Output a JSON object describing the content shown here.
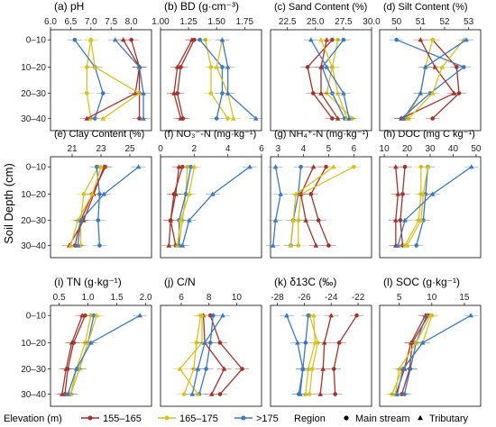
{
  "ylabel": "Soil Depth (cm)",
  "depths": [
    "0–10",
    "10–20",
    "20–30",
    "30–40"
  ],
  "colors": {
    "155–165": "#a5322a",
    "165–175": "#d9c21f",
    ">175": "#3c78c2"
  },
  "legend": {
    "elevation_title": "Elevation (m)",
    "elevation_items": [
      "155–165",
      "165–175",
      ">175"
    ],
    "region_title": "Region",
    "region_items": [
      "Main stream",
      "Tributary"
    ]
  },
  "chart_data": [
    {
      "title": "(a) pH",
      "type": "line",
      "xlim": [
        6.0,
        8.5
      ],
      "xticks": [
        6.0,
        6.5,
        7.0,
        7.5,
        8.0
      ],
      "series": [
        {
          "name": "155–165",
          "x": [
            8.0,
            8.2,
            8.2,
            8.2
          ]
        },
        {
          "name": "165–175",
          "x": [
            7.0,
            6.9,
            6.9,
            7.0
          ]
        },
        {
          "name": ">175",
          "x": [
            6.6,
            7.1,
            7.3,
            7.1
          ]
        },
        {
          "name": "155–165",
          "x": [
            7.8,
            8.2,
            8.1,
            6.9
          ]
        },
        {
          "name": "165–175",
          "x": [
            7.0,
            7.1,
            8.2,
            7.3
          ]
        },
        {
          "name": ">175",
          "x": [
            7.6,
            8.2,
            8.3,
            8.3
          ]
        }
      ]
    },
    {
      "title": "(b) BD (g·cm⁻³)",
      "type": "line",
      "xlim": [
        1.0,
        1.9
      ],
      "xticks": [
        1.0,
        1.25,
        1.5,
        1.75
      ],
      "series": [
        {
          "name": "155–165",
          "x": [
            1.3,
            1.18,
            1.15,
            1.2
          ]
        },
        {
          "name": "165–175",
          "x": [
            1.4,
            1.45,
            1.45,
            1.6
          ]
        },
        {
          "name": ">175",
          "x": [
            1.35,
            1.55,
            1.55,
            1.5
          ]
        },
        {
          "name": "155–165",
          "x": [
            1.28,
            1.15,
            1.12,
            1.18
          ]
        },
        {
          "name": "165–175",
          "x": [
            1.55,
            1.5,
            1.6,
            1.65
          ]
        },
        {
          "name": ">175",
          "x": [
            1.55,
            1.6,
            1.6,
            1.85
          ]
        }
      ]
    },
    {
      "title": "(c) Sand Content (%)",
      "type": "line",
      "xlim": [
        21,
        30
      ],
      "xticks": [
        22.5,
        25.0,
        27.5,
        30.0
      ],
      "series": [
        {
          "name": "155–165",
          "x": [
            26.5,
            24.3,
            24.8,
            26.5
          ]
        },
        {
          "name": "165–175",
          "x": [
            27,
            26.5,
            26,
            28.3
          ]
        },
        {
          "name": ">175",
          "x": [
            27.5,
            25.6,
            26.5,
            27.6
          ]
        },
        {
          "name": "155–165",
          "x": [
            26,
            25.5,
            25.5,
            27
          ]
        },
        {
          "name": "165–175",
          "x": [
            25.5,
            26.5,
            27,
            27.8
          ]
        },
        {
          "name": ">175",
          "x": [
            24.6,
            26,
            27.5,
            28
          ]
        }
      ]
    },
    {
      "title": "(d) Silt Content (%)",
      "type": "line",
      "xlim": [
        49.3,
        53.5
      ],
      "xticks": [
        50,
        51,
        52,
        53
      ],
      "series": [
        {
          "name": "155–165",
          "x": [
            51.5,
            52.5,
            52.6,
            51.5
          ]
        },
        {
          "name": "165–175",
          "x": [
            51.5,
            51.2,
            51,
            50.4
          ]
        },
        {
          "name": ">175",
          "x": [
            50,
            52.8,
            51.4,
            50.2
          ]
        },
        {
          "name": "155–165",
          "x": [
            51,
            51.6,
            52.4,
            50.2
          ]
        },
        {
          "name": "165–175",
          "x": [
            52.8,
            51.9,
            51.5,
            50.5
          ]
        },
        {
          "name": ">175",
          "x": [
            52.9,
            51.2,
            51,
            50.3
          ]
        }
      ]
    },
    {
      "title": "(e) Clay Content (%)",
      "type": "line",
      "xlim": [
        19.5,
        26.5
      ],
      "xticks": [
        21,
        23,
        25
      ],
      "series": [
        {
          "name": "155–165",
          "x": [
            23.3,
            22.4,
            21.6,
            21.2
          ]
        },
        {
          "name": "165–175",
          "x": [
            22.8,
            21.8,
            21.6,
            21.6
          ]
        },
        {
          "name": ">175",
          "x": [
            22.7,
            22.9,
            22.8,
            22.9
          ]
        },
        {
          "name": "155–165",
          "x": [
            23.2,
            22.5,
            21.8,
            20.8
          ]
        },
        {
          "name": "165–175",
          "x": [
            23,
            22.4,
            21.4,
            20.9
          ]
        },
        {
          "name": ">175",
          "x": [
            25.6,
            23.2,
            21.6,
            21.4
          ]
        }
      ]
    },
    {
      "title": "(f) NO₃⁻-N (mg·kg⁻¹)",
      "type": "line",
      "xlim": [
        0,
        6
      ],
      "xticks": [
        0,
        2,
        4,
        6
      ],
      "series": [
        {
          "name": "155–165",
          "x": [
            1.3,
            0.8,
            0.6,
            0.9
          ]
        },
        {
          "name": "165–175",
          "x": [
            1.6,
            1.5,
            1.3,
            1.1
          ]
        },
        {
          "name": ">175",
          "x": [
            1.8,
            1.5,
            1.1,
            1.1
          ]
        },
        {
          "name": "155–165",
          "x": [
            1.1,
            0.9,
            0.6,
            0.5
          ]
        },
        {
          "name": "165–175",
          "x": [
            2.0,
            1.7,
            1.2,
            1.0
          ]
        },
        {
          "name": ">175",
          "x": [
            5.3,
            3.1,
            1.7,
            1.3
          ]
        }
      ]
    },
    {
      "title": "(g) NH₄⁺-N (mg·kg⁻¹)",
      "type": "line",
      "xlim": [
        2.7,
        6.7
      ],
      "xticks": [
        3,
        4,
        5,
        6
      ],
      "series": [
        {
          "name": "155–165",
          "x": [
            4.9,
            4.3,
            4.6,
            5.0
          ]
        },
        {
          "name": "165–175",
          "x": [
            6.0,
            3.9,
            3.8,
            3.8
          ]
        },
        {
          "name": ">175",
          "x": [
            3.9,
            3.8,
            3.6,
            3.5
          ]
        },
        {
          "name": "155–165",
          "x": [
            4.4,
            3.9,
            4.1,
            4.5
          ]
        },
        {
          "name": "165–175",
          "x": [
            5.2,
            3.7,
            3.6,
            3.5
          ]
        },
        {
          "name": ">175",
          "x": [
            2.9,
            3.1,
            2.9,
            2.8
          ]
        }
      ]
    },
    {
      "title": "(h) DOC (mg C kg⁻¹)",
      "type": "line",
      "xlim": [
        8,
        52
      ],
      "xticks": [
        10,
        20,
        30,
        40,
        50
      ],
      "series": [
        {
          "name": "155–165",
          "x": [
            19,
            18,
            17,
            18
          ]
        },
        {
          "name": "165–175",
          "x": [
            26,
            26,
            25,
            19
          ]
        },
        {
          "name": ">175",
          "x": [
            29,
            28,
            27,
            24
          ]
        },
        {
          "name": "155–165",
          "x": [
            15,
            16,
            15,
            15
          ]
        },
        {
          "name": "165–175",
          "x": [
            29,
            27,
            26,
            20
          ]
        },
        {
          "name": ">175",
          "x": [
            48,
            31,
            19,
            16
          ]
        }
      ]
    },
    {
      "title": "(i) TN (g·kg⁻¹)",
      "type": "line",
      "xlim": [
        0.35,
        2.1
      ],
      "xticks": [
        0.5,
        1.0,
        1.5,
        2.0
      ],
      "series": [
        {
          "name": "155–165",
          "x": [
            0.95,
            0.75,
            0.65,
            0.6
          ]
        },
        {
          "name": "165–175",
          "x": [
            1.05,
            0.95,
            0.8,
            0.7
          ]
        },
        {
          "name": ">175",
          "x": [
            1.1,
            1.0,
            0.85,
            0.7
          ]
        },
        {
          "name": "155–165",
          "x": [
            0.9,
            0.72,
            0.62,
            0.55
          ]
        },
        {
          "name": "165–175",
          "x": [
            1.15,
            1.0,
            0.85,
            0.7
          ]
        },
        {
          "name": ">175",
          "x": [
            1.9,
            1.05,
            0.8,
            0.65
          ]
        }
      ]
    },
    {
      "title": "(j) C/N",
      "type": "line",
      "xlim": [
        4.5,
        11.8
      ],
      "xticks": [
        6,
        8,
        10
      ],
      "series": [
        {
          "name": "155–165",
          "x": [
            8.1,
            8.8,
            10.4,
            8.8
          ]
        },
        {
          "name": "165–175",
          "x": [
            7.4,
            7.1,
            6.9,
            6.2
          ]
        },
        {
          "name": ">175",
          "x": [
            8.3,
            8.1,
            7.8,
            7.3
          ]
        },
        {
          "name": "155–165",
          "x": [
            7.6,
            7.7,
            9.1,
            8.2
          ]
        },
        {
          "name": "165–175",
          "x": [
            7.5,
            7.5,
            5.9,
            7.2
          ]
        },
        {
          "name": ">175",
          "x": [
            9.0,
            7.7,
            7.2,
            6.8
          ]
        }
      ]
    },
    {
      "title": "(k) δ13C (‰)",
      "type": "line",
      "xlim": [
        -28.5,
        -21
      ],
      "xticks": [
        -28,
        -26,
        -24,
        -22
      ],
      "series": [
        {
          "name": "155–165",
          "x": [
            -22.1,
            -23.4,
            -23.8,
            -23.7
          ]
        },
        {
          "name": "165–175",
          "x": [
            -25.6,
            -25.0,
            -25.4,
            -25.6
          ]
        },
        {
          "name": ">175",
          "x": [
            -25.7,
            -25.9,
            -26.1,
            -26.4
          ]
        },
        {
          "name": "155–165",
          "x": [
            -24.0,
            -24.5,
            -24.6,
            -24.8
          ]
        },
        {
          "name": "165–175",
          "x": [
            -25.3,
            -25.2,
            -25.7,
            -25.9
          ]
        },
        {
          "name": ">175",
          "x": [
            -27.3,
            -26.5,
            -26.1,
            -26.3
          ]
        }
      ]
    },
    {
      "title": "(l) SOC (g·kg⁻¹)",
      "type": "line",
      "xlim": [
        2,
        17.5
      ],
      "xticks": [
        5,
        10,
        15
      ],
      "series": [
        {
          "name": "155–165",
          "x": [
            9.5,
            7.0,
            6.6,
            5.4
          ]
        },
        {
          "name": "165–175",
          "x": [
            10.0,
            8.6,
            5.5,
            3.9
          ]
        },
        {
          "name": ">175",
          "x": [
            9.2,
            7.6,
            6.7,
            5.8
          ]
        },
        {
          "name": "155–165",
          "x": [
            9.0,
            6.8,
            5.8,
            4.5
          ]
        },
        {
          "name": "165–175",
          "x": [
            9.8,
            7.6,
            5.0,
            4.4
          ]
        },
        {
          "name": ">175",
          "x": [
            16.0,
            8.6,
            5.6,
            4.7
          ]
        }
      ]
    }
  ]
}
